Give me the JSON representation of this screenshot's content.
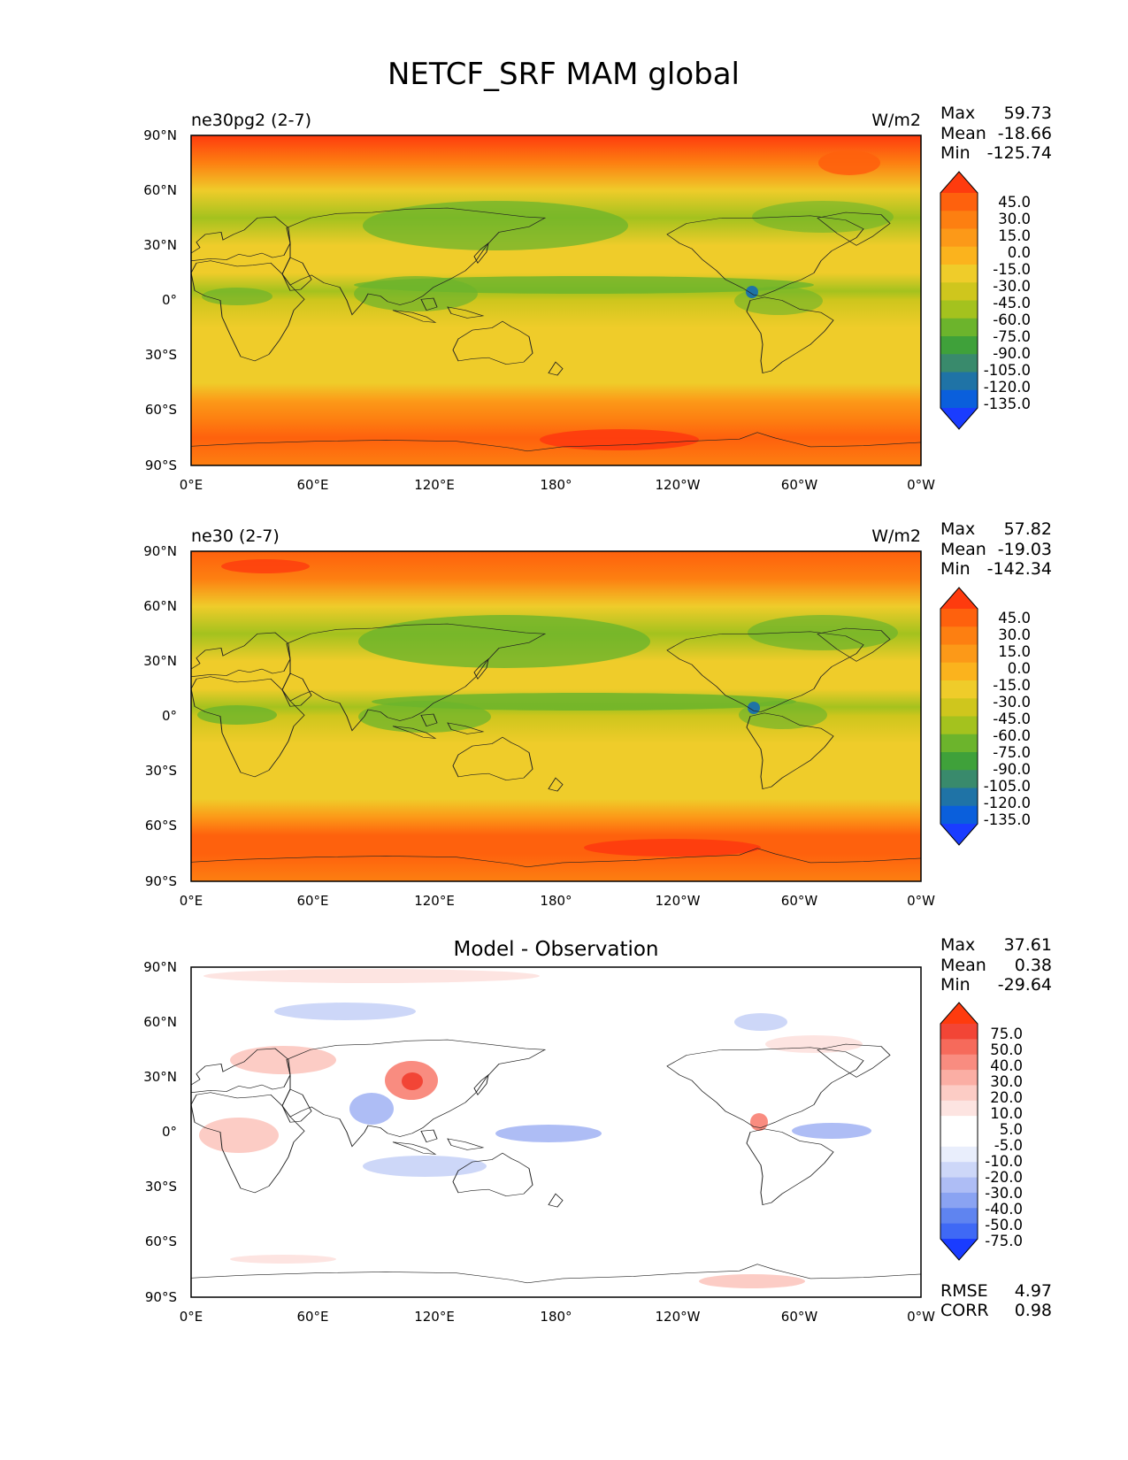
{
  "figure": {
    "title": "NETCF_SRF MAM global"
  },
  "colors": {
    "full_field": [
      "#1a3cff",
      "#0a5fdc",
      "#1f73a6",
      "#398a6c",
      "#3fa13a",
      "#6cb42c",
      "#a4c21e",
      "#cfc61d",
      "#efcc2a",
      "#fbb31d",
      "#fc9918",
      "#fd7f11",
      "#fe610d",
      "#fe3b0e"
    ],
    "difference": [
      "#1a3cff",
      "#3f69f5",
      "#5f84f0",
      "#8aa3f2",
      "#aebdf5",
      "#cdd7f8",
      "#e9eefc",
      "#ffffff",
      "#ffffff",
      "#fde4e1",
      "#fcccc5",
      "#fbaea4",
      "#f98c80",
      "#f66a5b",
      "#f24536",
      "#fe3b0e"
    ]
  },
  "chart_data": [
    {
      "type": "heatmap",
      "panel": "top",
      "title": "ne30pg2 (2-7)",
      "units": "W/m2",
      "x_ticks": [
        "0°E",
        "60°E",
        "120°E",
        "180°",
        "120°W",
        "60°W",
        "0°W"
      ],
      "y_ticks": [
        "90°N",
        "60°N",
        "30°N",
        "0°",
        "30°S",
        "60°S",
        "90°S"
      ],
      "stats": {
        "max_label": "Max",
        "max": "59.73",
        "mean_label": "Mean",
        "mean": "-18.66",
        "min_label": "Min",
        "min": "-125.74"
      },
      "colorbar": {
        "levels": [
          "45.0",
          "30.0",
          "15.0",
          "0.0",
          "-15.0",
          "-30.0",
          "-45.0",
          "-60.0",
          "-75.0",
          "-90.0",
          "-105.0",
          "-120.0",
          "-135.0"
        ]
      },
      "zonal_profile": [
        {
          "lat": 90,
          "value": 45
        },
        {
          "lat": 75,
          "value": 28
        },
        {
          "lat": 60,
          "value": -22
        },
        {
          "lat": 45,
          "value": -48
        },
        {
          "lat": 30,
          "value": -22
        },
        {
          "lat": 15,
          "value": -30
        },
        {
          "lat": 5,
          "value": -50
        },
        {
          "lat": 0,
          "value": -35
        },
        {
          "lat": -15,
          "value": -30
        },
        {
          "lat": -30,
          "value": -25
        },
        {
          "lat": -45,
          "value": -28
        },
        {
          "lat": -55,
          "value": 0
        },
        {
          "lat": -65,
          "value": 25
        },
        {
          "lat": -75,
          "value": 40
        },
        {
          "lat": -90,
          "value": 15
        }
      ]
    },
    {
      "type": "heatmap",
      "panel": "middle",
      "title": "ne30 (2-7)",
      "units": "W/m2",
      "x_ticks": [
        "0°E",
        "60°E",
        "120°E",
        "180°",
        "120°W",
        "60°W",
        "0°W"
      ],
      "y_ticks": [
        "90°N",
        "60°N",
        "30°N",
        "0°",
        "30°S",
        "60°S",
        "90°S"
      ],
      "stats": {
        "max_label": "Max",
        "max": "57.82",
        "mean_label": "Mean",
        "mean": "-19.03",
        "min_label": "Min",
        "min": "-142.34"
      },
      "colorbar": {
        "levels": [
          "45.0",
          "30.0",
          "15.0",
          "0.0",
          "-15.0",
          "-30.0",
          "-45.0",
          "-60.0",
          "-75.0",
          "-90.0",
          "-105.0",
          "-120.0",
          "-135.0"
        ]
      },
      "zonal_profile": [
        {
          "lat": 90,
          "value": 32
        },
        {
          "lat": 75,
          "value": 28
        },
        {
          "lat": 60,
          "value": -20
        },
        {
          "lat": 45,
          "value": -50
        },
        {
          "lat": 30,
          "value": -20
        },
        {
          "lat": 15,
          "value": -28
        },
        {
          "lat": 5,
          "value": -55
        },
        {
          "lat": 0,
          "value": -38
        },
        {
          "lat": -15,
          "value": -28
        },
        {
          "lat": -30,
          "value": -25
        },
        {
          "lat": -45,
          "value": -25
        },
        {
          "lat": -55,
          "value": 5
        },
        {
          "lat": -65,
          "value": 30
        },
        {
          "lat": -75,
          "value": 40
        },
        {
          "lat": -90,
          "value": 25
        }
      ]
    },
    {
      "type": "heatmap",
      "panel": "bottom",
      "title": "Model - Observation",
      "x_ticks": [
        "0°E",
        "60°E",
        "120°E",
        "180°",
        "120°W",
        "60°W",
        "0°W"
      ],
      "y_ticks": [
        "90°N",
        "60°N",
        "30°N",
        "0°",
        "30°S",
        "60°S",
        "90°S"
      ],
      "stats": {
        "max_label": "Max",
        "max": "37.61",
        "mean_label": "Mean",
        "mean": "0.38",
        "min_label": "Min",
        "min": "-29.64"
      },
      "colorbar": {
        "levels": [
          "75.0",
          "50.0",
          "40.0",
          "30.0",
          "20.0",
          "10.0",
          "5.0",
          "-5.0",
          "-10.0",
          "-20.0",
          "-30.0",
          "-40.0",
          "-50.0",
          "-75.0"
        ]
      },
      "metrics": {
        "rmse_label": "RMSE",
        "rmse": "4.97",
        "corr_label": "CORR",
        "corr": "0.98"
      }
    }
  ]
}
